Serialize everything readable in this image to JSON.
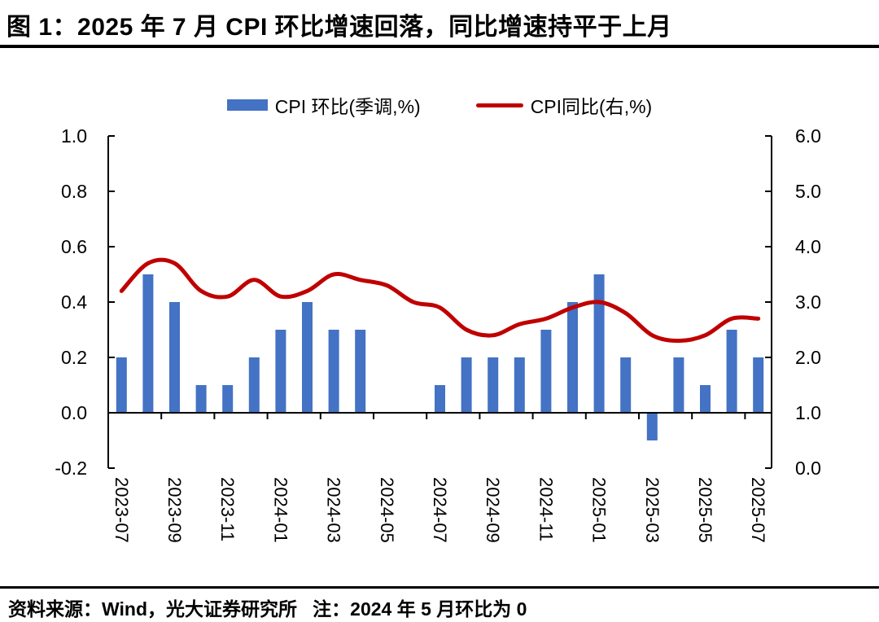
{
  "title": "图 1：2025 年 7 月 CPI 环比增速回落，同比增速持平于上月",
  "legend": {
    "bar_label": "CPI 环比(季调,%)",
    "line_label": "CPI同比(右,%)"
  },
  "footer": "资料来源：Wind，光大证券研究所   注：2024 年 5 月环比为 0",
  "colors": {
    "bar": "#4472C4",
    "line": "#C00000",
    "axis": "#000000"
  },
  "chart_data": {
    "type": "bar+line",
    "title": "图 1：2025 年 7 月 CPI 环比增速回落，同比增速持平于上月",
    "grid": false,
    "legend_position": "top-center",
    "categories": [
      "2023-07",
      "2023-08",
      "2023-09",
      "2023-10",
      "2023-11",
      "2023-12",
      "2024-01",
      "2024-02",
      "2024-03",
      "2024-04",
      "2024-05",
      "2024-06",
      "2024-07",
      "2024-08",
      "2024-09",
      "2024-10",
      "2024-11",
      "2024-12",
      "2025-01",
      "2025-02",
      "2025-03",
      "2025-04",
      "2025-05",
      "2025-06",
      "2025-07"
    ],
    "series": [
      {
        "name": "CPI 环比(季调,%)",
        "type": "bar",
        "axis": "left",
        "color": "#4472C4",
        "values": [
          0.2,
          0.5,
          0.4,
          0.1,
          0.1,
          0.2,
          0.3,
          0.4,
          0.3,
          0.3,
          0.0,
          0.0,
          0.1,
          0.2,
          0.2,
          0.2,
          0.3,
          0.4,
          0.5,
          0.2,
          -0.1,
          0.2,
          0.1,
          0.3,
          0.2
        ]
      },
      {
        "name": "CPI同比(右,%)",
        "type": "line",
        "axis": "right",
        "color": "#C00000",
        "values": [
          3.2,
          3.7,
          3.7,
          3.2,
          3.1,
          3.4,
          3.1,
          3.2,
          3.5,
          3.4,
          3.3,
          3.0,
          2.9,
          2.5,
          2.4,
          2.6,
          2.7,
          2.9,
          3.0,
          2.8,
          2.4,
          2.3,
          2.4,
          2.7,
          2.7
        ]
      }
    ],
    "left_axis": {
      "min": -0.2,
      "max": 1.0,
      "tick_labels": [
        "1.0",
        "0.8",
        "0.6",
        "0.4",
        "0.2",
        "0.0",
        "-0.2"
      ]
    },
    "right_axis": {
      "min": 0.0,
      "max": 6.0,
      "tick_labels": [
        "6.0",
        "5.0",
        "4.0",
        "3.0",
        "2.0",
        "1.0",
        "0.0"
      ]
    },
    "x_tick_labels": [
      "2023-07",
      "2023-09",
      "2023-11",
      "2024-01",
      "2024-03",
      "2024-05",
      "2024-07",
      "2024-09",
      "2024-11",
      "2025-01",
      "2025-03",
      "2025-05",
      "2025-07"
    ]
  }
}
